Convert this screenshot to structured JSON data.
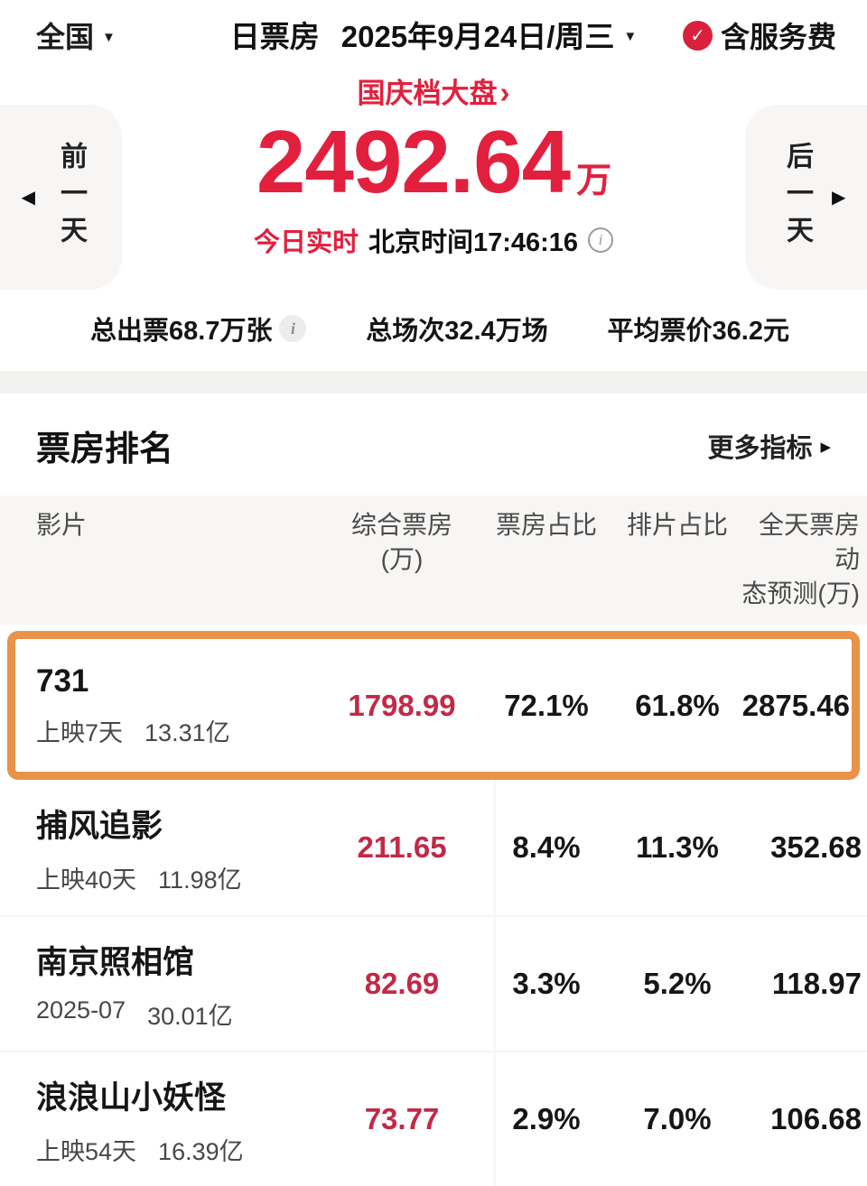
{
  "colors": {
    "primary_red": "#e2203e",
    "table_red": "#c22946",
    "highlight_orange": "#e8924a"
  },
  "icons": {
    "caret_down": "▼",
    "caret_left": "◀",
    "caret_right": "▶",
    "more_arrow": "▶",
    "chevron_right": "›",
    "check": "✓",
    "info": "i"
  },
  "top_bar": {
    "region": "全国",
    "metric": "日票房",
    "date": "2025年9月24日/周三",
    "service_fee": "含服务费"
  },
  "holiday_link": {
    "label": "国庆档大盘"
  },
  "hero": {
    "value": "2492.64",
    "unit": "万",
    "realtime_label": "今日实时",
    "beijing_time": "北京时间17:46:16",
    "prev_day": "前一天",
    "next_day": "后一天"
  },
  "stats": [
    {
      "text": "总出票68.7万张"
    },
    {
      "text": "总场次32.4万场"
    },
    {
      "text": "平均票价36.2元"
    }
  ],
  "ranking": {
    "title": "票房排名",
    "more": "更多指标",
    "columns": {
      "film": "影片",
      "box_line1": "综合票房",
      "box_line2": "(万)",
      "box_share": "票房占比",
      "screen_share": "排片占比",
      "forecast_line1": "全天票房动",
      "forecast_line2": "态预测(万)"
    },
    "rows": [
      {
        "title": "731",
        "release": "上映7天",
        "gross": "13.31亿",
        "box": "1798.99",
        "box_share": "72.1%",
        "screen_share": "61.8%",
        "forecast": "2875.46"
      },
      {
        "title": "捕风追影",
        "release": "上映40天",
        "gross": "11.98亿",
        "box": "211.65",
        "box_share": "8.4%",
        "screen_share": "11.3%",
        "forecast": "352.68"
      },
      {
        "title": "南京照相馆",
        "release": "2025-07",
        "gross": "30.01亿",
        "box": "82.69",
        "box_share": "3.3%",
        "screen_share": "5.2%",
        "forecast": "118.97"
      },
      {
        "title": "浪浪山小妖怪",
        "release": "上映54天",
        "gross": "16.39亿",
        "box": "73.77",
        "box_share": "2.9%",
        "screen_share": "7.0%",
        "forecast": "106.68"
      }
    ]
  }
}
